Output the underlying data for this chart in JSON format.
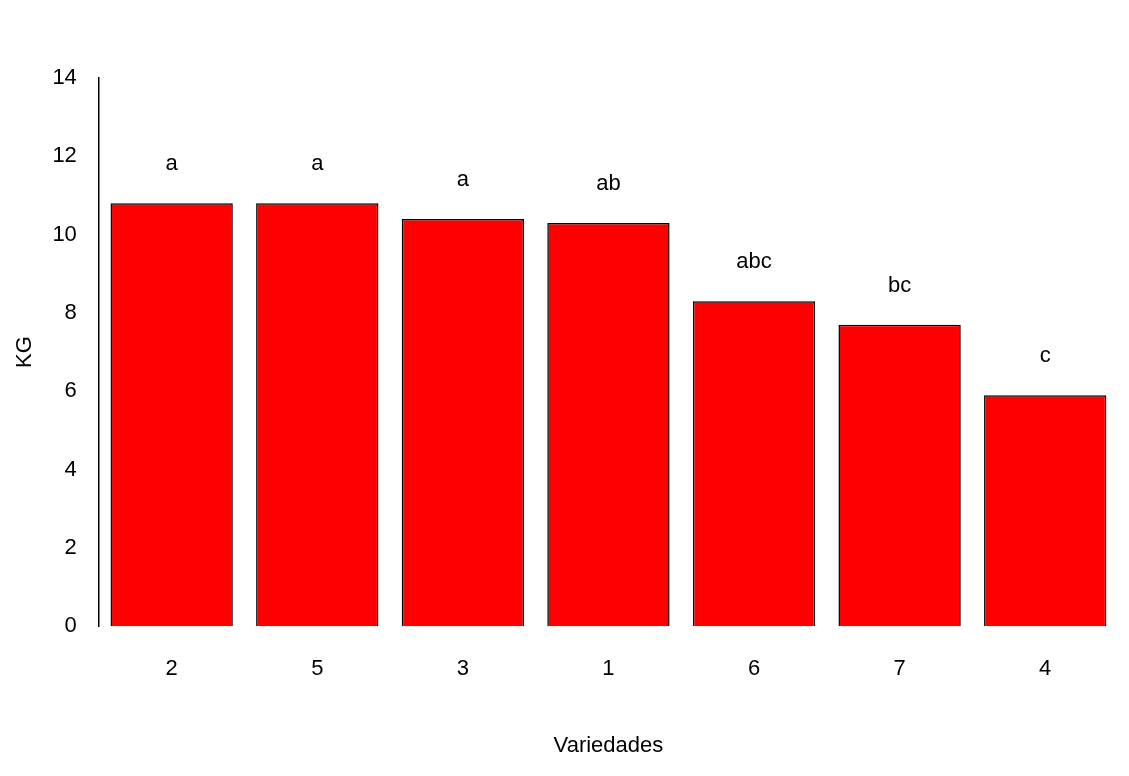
{
  "chart_data": {
    "type": "bar",
    "xlabel": "Variedades",
    "ylabel": "KG",
    "categories": [
      "2",
      "5",
      "3",
      "1",
      "6",
      "7",
      "4"
    ],
    "values": [
      10.8,
      10.8,
      10.4,
      10.3,
      8.3,
      7.7,
      5.9
    ],
    "color": "#ff0000",
    "ylim": [
      0,
      14
    ],
    "yticks": [
      0,
      2,
      4,
      6,
      8,
      10,
      12,
      14
    ],
    "grid": false,
    "legend": false,
    "annotations": [
      {
        "text": "a",
        "x": "2",
        "y": 10.8
      },
      {
        "text": "a",
        "x": "5",
        "y": 10.8
      },
      {
        "text": "a",
        "x": "3",
        "y": 10.4
      },
      {
        "text": "ab",
        "x": "1",
        "y": 10.3
      },
      {
        "text": "abc",
        "x": "6",
        "y": 8.3
      },
      {
        "text": "bc",
        "x": "7",
        "y": 7.7
      },
      {
        "text": "c",
        "x": "4",
        "y": 5.9
      }
    ]
  }
}
